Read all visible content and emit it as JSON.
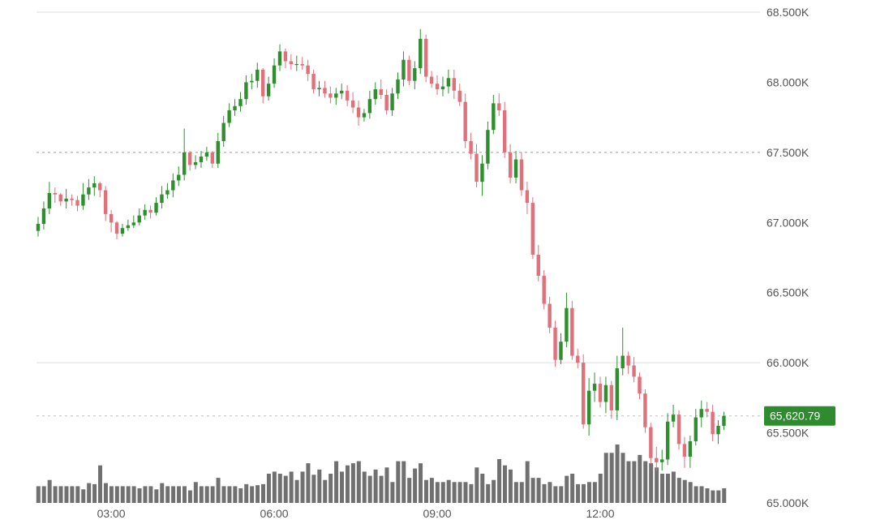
{
  "chart_data": {
    "type": "candlestick",
    "y_axis": {
      "ylim": [
        65000,
        68500
      ],
      "tick_values": [
        65000,
        65500,
        66000,
        66500,
        67000,
        67500,
        68000,
        68500
      ],
      "tick_labels": [
        "65.000K",
        "65.500K",
        "66.000K",
        "66.500K",
        "67.000K",
        "67.500K",
        "68.000K",
        "68.500K"
      ],
      "position": "right"
    },
    "x_axis": {
      "tick_labels": [
        "03:00",
        "06:00",
        "09:00",
        "12:00"
      ],
      "tick_candle_index": [
        13,
        42,
        71,
        100
      ]
    },
    "grid": {
      "solid_levels": [
        68500,
        66000
      ],
      "dashed_levels": [
        67500
      ]
    },
    "current_price": {
      "value": 65620.79,
      "label": "65,620.79",
      "color": "#2e8b2e"
    },
    "colors": {
      "up": "#2f8f2f",
      "down": "#e0707a",
      "volume": "#707070",
      "grid": "#dddddd",
      "dashed": "#999999"
    },
    "candles": {
      "open": [
        66940,
        66990,
        67100,
        67210,
        67200,
        67150,
        67170,
        67160,
        67120,
        67200,
        67250,
        67280,
        67230,
        67060,
        67000,
        66920,
        66960,
        66980,
        67000,
        67050,
        67090,
        67070,
        67140,
        67200,
        67230,
        67300,
        67340,
        67500,
        67410,
        67430,
        67470,
        67500,
        67420,
        67580,
        67710,
        67800,
        67830,
        67880,
        68000,
        68010,
        68090,
        67900,
        67990,
        68120,
        68220,
        68150,
        68130,
        68130,
        68120,
        68060,
        67950,
        67960,
        67920,
        67890,
        67920,
        67940,
        67870,
        67820,
        67750,
        67780,
        67880,
        67950,
        67910,
        67800,
        67920,
        68020,
        68160,
        68010,
        68100,
        68310,
        68040,
        67990,
        67950,
        67970,
        68030,
        67940,
        67860,
        67580,
        67490,
        67290,
        67420,
        67660,
        67850,
        67800,
        67500,
        67320,
        67450,
        67230,
        67140,
        66770,
        66620,
        66420,
        66250,
        66020,
        66150,
        66390,
        66050,
        66000,
        65560,
        65800,
        65850,
        65720,
        65840,
        65660,
        65960,
        66050,
        65980,
        65900,
        65780,
        65540,
        65320,
        65290,
        65310,
        65580,
        65630,
        65420,
        65330,
        65440,
        65610,
        65670,
        65650,
        65490,
        65550
      ],
      "close": [
        66990,
        67100,
        67210,
        67200,
        67150,
        67170,
        67160,
        67120,
        67200,
        67250,
        67280,
        67230,
        67060,
        67000,
        66920,
        66960,
        66980,
        67000,
        67050,
        67090,
        67070,
        67140,
        67200,
        67230,
        67300,
        67340,
        67500,
        67410,
        67430,
        67470,
        67500,
        67420,
        67580,
        67710,
        67800,
        67830,
        67880,
        68000,
        68010,
        68090,
        67900,
        67990,
        68120,
        68220,
        68150,
        68130,
        68130,
        68120,
        68060,
        67950,
        67960,
        67920,
        67890,
        67920,
        67940,
        67870,
        67820,
        67750,
        67780,
        67880,
        67950,
        67910,
        67800,
        67920,
        68020,
        68160,
        68010,
        68100,
        68310,
        68040,
        67990,
        67950,
        67970,
        68030,
        67940,
        67860,
        67580,
        67490,
        67290,
        67420,
        67660,
        67850,
        67800,
        67500,
        67320,
        67450,
        67230,
        67140,
        66770,
        66620,
        66420,
        66250,
        66020,
        66150,
        66390,
        66050,
        66000,
        65560,
        65800,
        65850,
        65720,
        65840,
        65660,
        65960,
        66050,
        65980,
        65900,
        65780,
        65540,
        65320,
        65290,
        65310,
        65580,
        65630,
        65420,
        65330,
        65440,
        65610,
        65670,
        65650,
        65490,
        65550,
        65621
      ],
      "high": [
        67040,
        67150,
        67290,
        67250,
        67210,
        67240,
        67200,
        67190,
        67280,
        67310,
        67330,
        67290,
        67260,
        67090,
        67010,
        66990,
        67020,
        67050,
        67100,
        67130,
        67120,
        67180,
        67260,
        67280,
        67350,
        67400,
        67670,
        67510,
        67480,
        67510,
        67540,
        67510,
        67640,
        67760,
        67850,
        67880,
        67930,
        68050,
        68060,
        68140,
        68100,
        68040,
        68170,
        68270,
        68240,
        68200,
        68190,
        68180,
        68160,
        68090,
        68010,
        68010,
        67970,
        67960,
        67990,
        67980,
        67930,
        67870,
        67810,
        67940,
        68000,
        68020,
        67950,
        67960,
        68070,
        68220,
        68190,
        68150,
        68380,
        68340,
        68080,
        68050,
        68040,
        68090,
        68090,
        67990,
        67920,
        67640,
        67560,
        67480,
        67720,
        67910,
        67920,
        67860,
        67560,
        67510,
        67500,
        67290,
        67180,
        66840,
        66660,
        66470,
        66300,
        66210,
        66500,
        66440,
        66100,
        66060,
        65890,
        65930,
        65900,
        65900,
        65870,
        66050,
        66250,
        66080,
        66040,
        65930,
        65810,
        65570,
        65400,
        65380,
        65640,
        65700,
        65660,
        65470,
        65480,
        65670,
        65730,
        65720,
        65700,
        65590,
        65650
      ],
      "high_note": "values in USD",
      "low": [
        66900,
        66950,
        67060,
        67140,
        67120,
        67100,
        67120,
        67080,
        67090,
        67160,
        67190,
        67180,
        67010,
        66930,
        66880,
        66900,
        66940,
        66960,
        66980,
        67020,
        67030,
        67050,
        67100,
        67170,
        67180,
        67260,
        67300,
        67370,
        67380,
        67390,
        67440,
        67390,
        67390,
        67540,
        67680,
        67760,
        67790,
        67840,
        67950,
        67960,
        67850,
        67870,
        67960,
        68080,
        68100,
        68090,
        68080,
        68090,
        68010,
        67920,
        67900,
        67890,
        67850,
        67840,
        67880,
        67830,
        67780,
        67690,
        67720,
        67740,
        67840,
        67880,
        67770,
        67760,
        67880,
        67970,
        67980,
        67950,
        68060,
        68000,
        67960,
        67910,
        67900,
        67920,
        67880,
        67830,
        67530,
        67450,
        67250,
        67190,
        67380,
        67630,
        67760,
        67460,
        67280,
        67280,
        67190,
        67060,
        66740,
        66580,
        66380,
        66210,
        65970,
        65990,
        66110,
        66020,
        65960,
        65530,
        65480,
        65720,
        65680,
        65640,
        65600,
        65590,
        65910,
        65920,
        65860,
        65740,
        65500,
        65280,
        65230,
        65230,
        65270,
        65540,
        65380,
        65250,
        65250,
        65410,
        65540,
        65610,
        65440,
        65420,
        65520
      ],
      "volume": [
        16000,
        16000,
        22000,
        16000,
        16000,
        16000,
        16000,
        16000,
        13000,
        19000,
        18000,
        36000,
        19000,
        16000,
        16000,
        16000,
        16000,
        16000,
        14000,
        16000,
        16000,
        13000,
        19000,
        16000,
        16000,
        16000,
        16000,
        12000,
        20000,
        16000,
        16000,
        16000,
        24000,
        16000,
        16000,
        16000,
        14000,
        18000,
        16000,
        17000,
        18000,
        28000,
        30000,
        28000,
        26000,
        30000,
        22000,
        30000,
        38000,
        27000,
        32000,
        22000,
        28000,
        40000,
        30000,
        36000,
        38000,
        40000,
        30000,
        26000,
        32000,
        26000,
        34000,
        20000,
        40000,
        40000,
        24000,
        33000,
        38000,
        22000,
        24000,
        20000,
        20000,
        22000,
        20000,
        20000,
        20000,
        18000,
        34000,
        28000,
        18000,
        22000,
        42000,
        36000,
        32000,
        20000,
        20000,
        40000,
        24000,
        24000,
        18000,
        20000,
        16000,
        16000,
        26000,
        28000,
        18000,
        18000,
        20000,
        20000,
        28000,
        48000,
        48000,
        56000,
        48000,
        40000,
        40000,
        46000,
        40000,
        38000,
        34000,
        28000,
        28000,
        30000,
        24000,
        22000,
        20000,
        16000,
        16000,
        14000,
        12000,
        12000,
        14000
      ],
      "volume_scale_max": 70000
    }
  }
}
